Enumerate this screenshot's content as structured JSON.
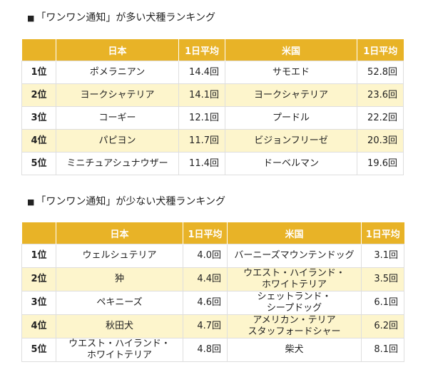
{
  "sections": [
    {
      "bullet": "■",
      "title": "「ワンワン通知」が多い犬種ランキング",
      "headers": [
        "",
        "日本",
        "1日平均",
        "米国",
        "1日平均"
      ],
      "rows": [
        {
          "rank": "1位",
          "jp_breed": "ポメラニアン",
          "jp_avg": "14.4回",
          "us_breed": "サモエド",
          "us_avg": "52.8回"
        },
        {
          "rank": "2位",
          "jp_breed": "ヨークシャテリア",
          "jp_avg": "14.1回",
          "us_breed": "ヨークシャテリア",
          "us_avg": "23.6回"
        },
        {
          "rank": "3位",
          "jp_breed": "コーギー",
          "jp_avg": "12.1回",
          "us_breed": "プードル",
          "us_avg": "22.2回"
        },
        {
          "rank": "4位",
          "jp_breed": "パピヨン",
          "jp_avg": "11.7回",
          "us_breed": "ビジョンフリーゼ",
          "us_avg": "20.3回"
        },
        {
          "rank": "5位",
          "jp_breed": "ミニチュアシュナウザー",
          "jp_avg": "11.4回",
          "us_breed": "ドーベルマン",
          "us_avg": "19.6回"
        }
      ]
    },
    {
      "bullet": "■",
      "title": "「ワンワン通知」が少ない犬種ランキング",
      "headers": [
        "",
        "日本",
        "1日平均",
        "米国",
        "1日平均"
      ],
      "rows": [
        {
          "rank": "1位",
          "jp_breed": "ウェルシュテリア",
          "jp_avg": "4.0回",
          "us_breed": "バーニーズマウンテンドッグ",
          "us_avg": "3.1回"
        },
        {
          "rank": "2位",
          "jp_breed": "狆",
          "jp_avg": "4.4回",
          "us_breed": "ウエスト・ハイランド・\nホワイトテリア",
          "us_avg": "3.5回"
        },
        {
          "rank": "3位",
          "jp_breed": "ペキニーズ",
          "jp_avg": "4.6回",
          "us_breed": "シェットランド・\nシープドッグ",
          "us_avg": "6.1回"
        },
        {
          "rank": "4位",
          "jp_breed": "秋田犬",
          "jp_avg": "4.7回",
          "us_breed": "アメリカン・テリア\nスタッフォードシャー",
          "us_avg": "6.2回"
        },
        {
          "rank": "5位",
          "jp_breed": "ウエスト・ハイランド・\nホワイトテリア",
          "jp_avg": "4.8回",
          "us_breed": "柴犬",
          "us_avg": "8.1回"
        }
      ]
    }
  ],
  "colors": {
    "header_bg": "#e8b327",
    "header_text": "#ffffff",
    "alt_row_bg": "#fdf5cc"
  }
}
